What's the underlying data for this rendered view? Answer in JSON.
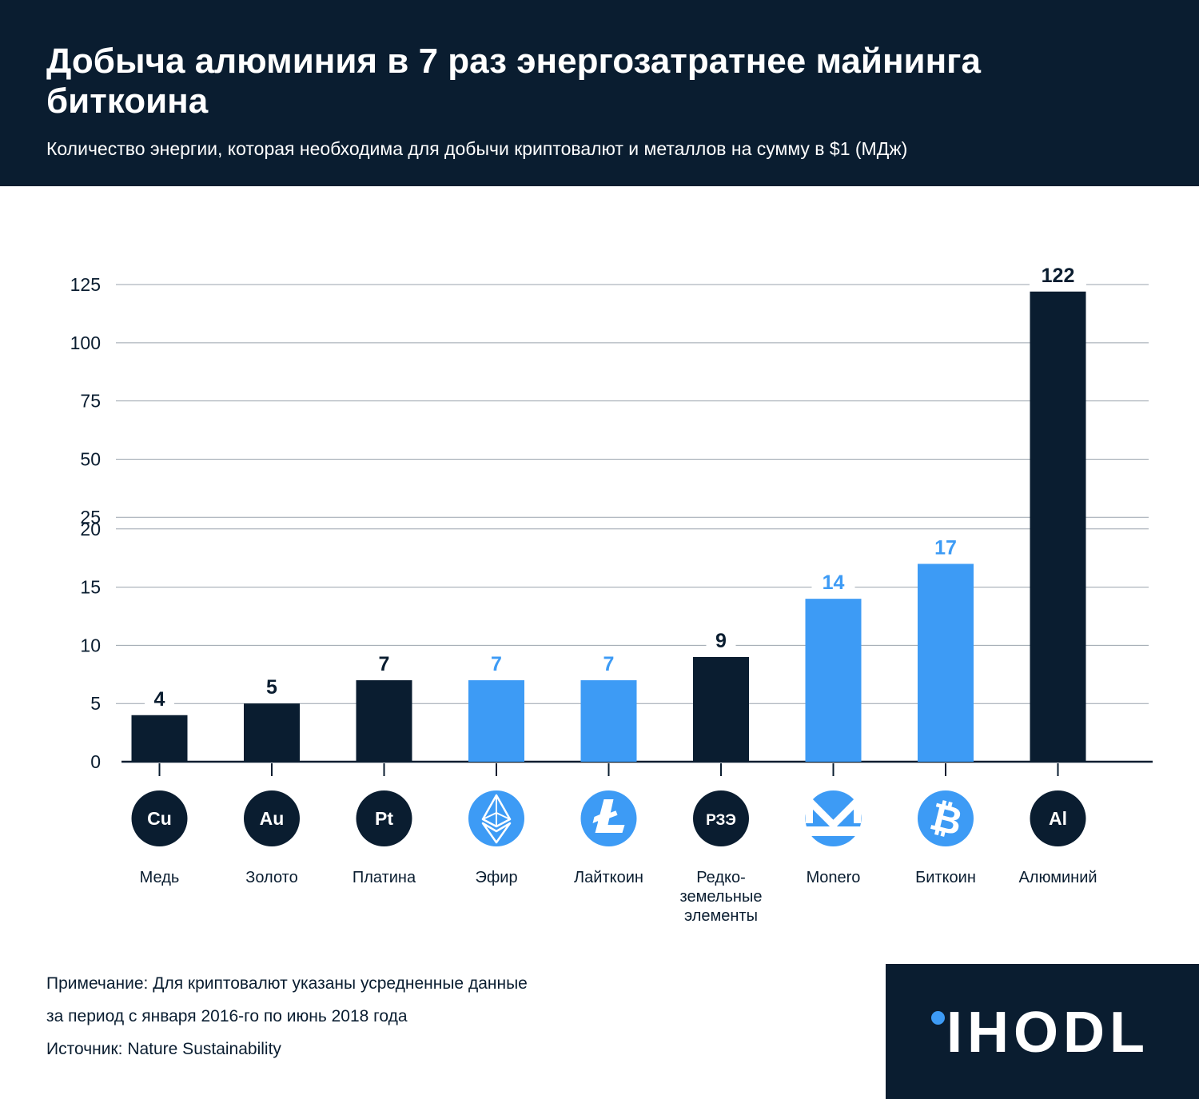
{
  "header": {
    "title": "Добыча алюминия в 7 раз энергозатратнее майнинга биткоина",
    "subtitle": "Количество энергии, которая необходима для добычи криптовалют и металлов на сумму в $1 (МДж)"
  },
  "colors": {
    "header_bg": "#0a1d30",
    "metal": "#0a1d30",
    "crypto": "#3d9bf5",
    "grid": "#9aa3ad"
  },
  "chart_data": {
    "type": "bar",
    "title": "Добыча алюминия в 7 раз энергозатратнее майнинга биткоина",
    "subtitle": "Количество энергии, которая необходима для добычи криптовалют и металлов на сумму в $1 (МДж)",
    "y_scale": "broken (0–20 step 5, then 25–125 step 25)",
    "y_ticks": [
      0,
      5,
      10,
      15,
      20,
      25,
      50,
      75,
      100,
      125
    ],
    "grid": true,
    "items": [
      {
        "label": "Медь",
        "symbol": "Cu",
        "value": 4,
        "kind": "metal",
        "icon": "copper-icon"
      },
      {
        "label": "Золото",
        "symbol": "Au",
        "value": 5,
        "kind": "metal",
        "icon": "gold-icon"
      },
      {
        "label": "Платина",
        "symbol": "Pt",
        "value": 7,
        "kind": "metal",
        "icon": "platinum-icon"
      },
      {
        "label": "Эфир",
        "symbol": "",
        "value": 7,
        "kind": "crypto",
        "icon": "ethereum-icon"
      },
      {
        "label": "Лайткоин",
        "symbol": "",
        "value": 7,
        "kind": "crypto",
        "icon": "litecoin-icon"
      },
      {
        "label": "Редко-\nземельные\nэлементы",
        "symbol": "РЗЭ",
        "value": 9,
        "kind": "metal",
        "icon": "rare-earth-icon"
      },
      {
        "label": "Monero",
        "symbol": "",
        "value": 14,
        "kind": "crypto",
        "icon": "monero-icon"
      },
      {
        "label": "Биткоин",
        "symbol": "",
        "value": 17,
        "kind": "crypto",
        "icon": "bitcoin-icon"
      },
      {
        "label": "Алюминий",
        "symbol": "Al",
        "value": 122,
        "kind": "metal",
        "icon": "aluminium-icon"
      }
    ]
  },
  "notes": {
    "note_line1": "Примечание: Для криптовалют указаны усредненные данные",
    "note_line2": "за период с января 2016-го по июнь 2018 года",
    "source": "Источник: Nature Sustainability"
  },
  "logo": {
    "text": "IHODL"
  }
}
